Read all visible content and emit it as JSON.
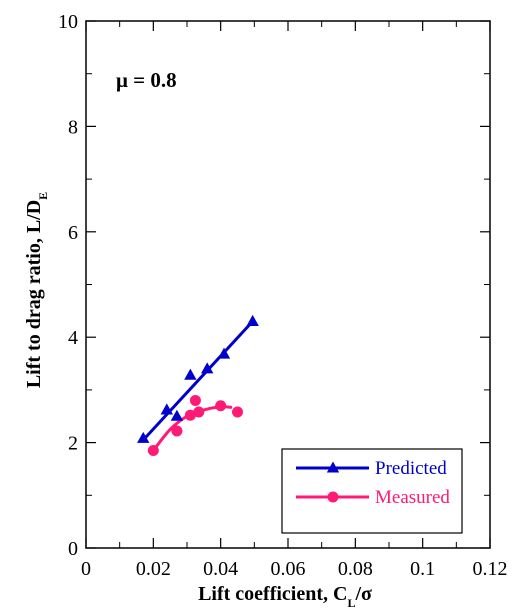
{
  "chart_data": {
    "type": "scatter",
    "annotation": "μ = 0.8",
    "xlabel": {
      "main": "Lift coefficient, C",
      "subscript": "L",
      "suffix": "/σ"
    },
    "ylabel": {
      "main": "Lift to drag ratio, L/D",
      "subscript": "E"
    },
    "xlim": [
      0,
      0.12
    ],
    "ylim": [
      0,
      10
    ],
    "x_ticks": [
      0,
      0.02,
      0.04,
      0.06,
      0.08,
      0.1,
      0.12
    ],
    "x_tick_labels": [
      "0",
      "0.02",
      "0.04",
      "0.06",
      "0.08",
      "0.1",
      "0.12"
    ],
    "y_ticks": [
      0,
      2,
      4,
      6,
      8,
      10
    ],
    "y_tick_labels": [
      "0",
      "2",
      "4",
      "6",
      "8",
      "10"
    ],
    "grid": false,
    "legend_position": "bottom-right",
    "series": [
      {
        "name": "Predicted",
        "color": "#0000cc",
        "marker": "triangle",
        "points": [
          [
            0.017,
            2.08
          ],
          [
            0.024,
            2.62
          ],
          [
            0.027,
            2.5
          ],
          [
            0.031,
            3.28
          ],
          [
            0.036,
            3.4
          ],
          [
            0.041,
            3.68
          ],
          [
            0.0495,
            4.3
          ]
        ],
        "fit": {
          "kind": "linear",
          "from": [
            0.017,
            2.05
          ],
          "to": [
            0.0495,
            4.3
          ]
        }
      },
      {
        "name": "Measured",
        "color": "#ff1a75",
        "marker": "circle",
        "points": [
          [
            0.02,
            1.85
          ],
          [
            0.027,
            2.22
          ],
          [
            0.031,
            2.52
          ],
          [
            0.0325,
            2.8
          ],
          [
            0.0335,
            2.58
          ],
          [
            0.04,
            2.7
          ],
          [
            0.045,
            2.58
          ]
        ],
        "fit": {
          "kind": "curve",
          "points": [
            [
              0.02,
              1.85
            ],
            [
              0.025,
              2.25
            ],
            [
              0.03,
              2.5
            ],
            [
              0.035,
              2.62
            ],
            [
              0.04,
              2.68
            ],
            [
              0.043,
              2.67
            ]
          ]
        }
      }
    ]
  }
}
